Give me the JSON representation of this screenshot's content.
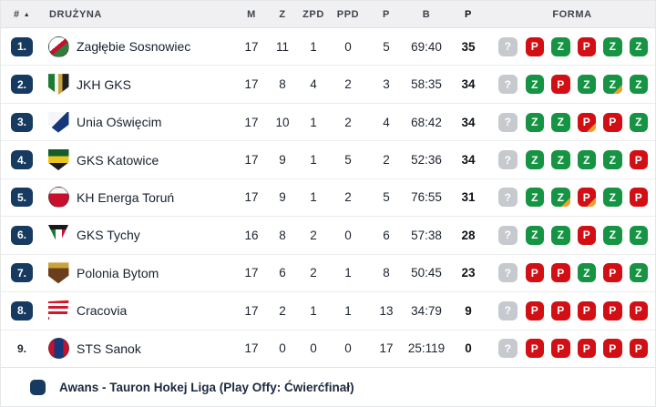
{
  "colors": {
    "navy": "#173a60",
    "green": "#169444",
    "red": "#d20f14",
    "gray": "#c6c9cd",
    "orange": "#f0a032"
  },
  "table": {
    "columns": {
      "rank": "#",
      "rank_sort": "▲",
      "team": "DRUŻYNA",
      "m": "M",
      "z": "Z",
      "zpd": "ZPD",
      "ppd": "PPD",
      "p": "P",
      "b": "B",
      "pts": "P",
      "forma": "FORMA"
    },
    "rows": [
      {
        "rank": "1.",
        "promoted": true,
        "team": "Zagłębie Sosnowiec",
        "m": "17",
        "z": "11",
        "zpd": "1",
        "ppd": "0",
        "p": "5",
        "b": "69:40",
        "pts": "35",
        "forma": [
          {
            "t": "?",
            "s": "unknown"
          },
          {
            "t": "P",
            "s": "loss"
          },
          {
            "t": "Z",
            "s": "win"
          },
          {
            "t": "P",
            "s": "loss"
          },
          {
            "t": "Z",
            "s": "win"
          },
          {
            "t": "Z",
            "s": "win"
          }
        ],
        "logo": {
          "shape": "circle",
          "bg": "linear-gradient(140deg, #ffffff 42%, #c8102e 42% 58%, #2e7d3a 58%)"
        }
      },
      {
        "rank": "2.",
        "promoted": true,
        "team": "JKH GKS",
        "m": "17",
        "z": "8",
        "zpd": "4",
        "ppd": "2",
        "p": "3",
        "b": "58:35",
        "pts": "34",
        "forma": [
          {
            "t": "?",
            "s": "unknown"
          },
          {
            "t": "Z",
            "s": "win"
          },
          {
            "t": "P",
            "s": "loss"
          },
          {
            "t": "Z",
            "s": "win"
          },
          {
            "t": "Z",
            "s": "win",
            "ot": true
          },
          {
            "t": "Z",
            "s": "win"
          }
        ],
        "logo": {
          "shape": "shield",
          "bg": "linear-gradient(90deg, #1d7a34 0 30%, #f2f2f2 30% 48%, #caa43a 48% 68%, #1f1f1f 68%)"
        }
      },
      {
        "rank": "3.",
        "promoted": true,
        "team": "Unia Oświęcim",
        "m": "17",
        "z": "10",
        "zpd": "1",
        "ppd": "2",
        "p": "4",
        "b": "68:42",
        "pts": "34",
        "forma": [
          {
            "t": "?",
            "s": "unknown"
          },
          {
            "t": "Z",
            "s": "win"
          },
          {
            "t": "Z",
            "s": "win"
          },
          {
            "t": "P",
            "s": "loss",
            "ot": true
          },
          {
            "t": "P",
            "s": "loss"
          },
          {
            "t": "Z",
            "s": "win"
          }
        ],
        "logo": {
          "shape": "shield",
          "bg": "linear-gradient(135deg, #f4f6fa 45%, #15377c 45%)"
        }
      },
      {
        "rank": "4.",
        "promoted": true,
        "team": "GKS Katowice",
        "m": "17",
        "z": "9",
        "zpd": "1",
        "ppd": "5",
        "p": "2",
        "b": "52:36",
        "pts": "34",
        "forma": [
          {
            "t": "?",
            "s": "unknown"
          },
          {
            "t": "Z",
            "s": "win"
          },
          {
            "t": "Z",
            "s": "win"
          },
          {
            "t": "Z",
            "s": "win"
          },
          {
            "t": "Z",
            "s": "win"
          },
          {
            "t": "P",
            "s": "loss"
          }
        ],
        "logo": {
          "shape": "shield",
          "bg": "linear-gradient(180deg, #145c2a 0 32%, #e8c520 32% 66%, #1a1a1a 66%)"
        }
      },
      {
        "rank": "5.",
        "promoted": true,
        "team": "KH Energa Toruń",
        "m": "17",
        "z": "9",
        "zpd": "1",
        "ppd": "2",
        "p": "5",
        "b": "76:55",
        "pts": "31",
        "forma": [
          {
            "t": "?",
            "s": "unknown"
          },
          {
            "t": "Z",
            "s": "win"
          },
          {
            "t": "Z",
            "s": "win",
            "ot": true
          },
          {
            "t": "P",
            "s": "loss",
            "ot": true
          },
          {
            "t": "Z",
            "s": "win"
          },
          {
            "t": "P",
            "s": "loss"
          }
        ],
        "logo": {
          "shape": "circle",
          "bg": "linear-gradient(180deg, #f5f5f5 0 32%, #c8102e 32%)"
        }
      },
      {
        "rank": "6.",
        "promoted": true,
        "team": "GKS Tychy",
        "m": "16",
        "z": "8",
        "zpd": "2",
        "ppd": "0",
        "p": "6",
        "b": "57:38",
        "pts": "28",
        "forma": [
          {
            "t": "?",
            "s": "unknown"
          },
          {
            "t": "Z",
            "s": "win"
          },
          {
            "t": "Z",
            "s": "win"
          },
          {
            "t": "P",
            "s": "loss"
          },
          {
            "t": "Z",
            "s": "win"
          },
          {
            "t": "Z",
            "s": "win"
          }
        ],
        "logo": {
          "shape": "pennant",
          "bg": "linear-gradient(180deg, #1a1a1a 0 22%, transparent 22%), linear-gradient(90deg, #1d7a34 0 34%, #ffffff 34% 66%, #c8102e 66%)"
        }
      },
      {
        "rank": "7.",
        "promoted": true,
        "team": "Polonia Bytom",
        "m": "17",
        "z": "6",
        "zpd": "2",
        "ppd": "1",
        "p": "8",
        "b": "50:45",
        "pts": "23",
        "forma": [
          {
            "t": "?",
            "s": "unknown"
          },
          {
            "t": "P",
            "s": "loss"
          },
          {
            "t": "P",
            "s": "loss"
          },
          {
            "t": "Z",
            "s": "win"
          },
          {
            "t": "P",
            "s": "loss"
          },
          {
            "t": "Z",
            "s": "win"
          }
        ],
        "logo": {
          "shape": "shield",
          "bg": "linear-gradient(180deg, #caa43a 0 28%, #6b3f1d 28%)"
        }
      },
      {
        "rank": "8.",
        "promoted": true,
        "team": "Cracovia",
        "m": "17",
        "z": "2",
        "zpd": "1",
        "ppd": "1",
        "p": "13",
        "b": "34:79",
        "pts": "9",
        "forma": [
          {
            "t": "?",
            "s": "unknown"
          },
          {
            "t": "P",
            "s": "loss"
          },
          {
            "t": "P",
            "s": "loss"
          },
          {
            "t": "P",
            "s": "loss"
          },
          {
            "t": "P",
            "s": "loss"
          },
          {
            "t": "P",
            "s": "loss"
          }
        ],
        "logo": {
          "shape": "flag",
          "bg": "repeating-linear-gradient(180deg, #d3172a 0 3px, #ffffff 3px 6px)"
        }
      },
      {
        "rank": "9.",
        "promoted": false,
        "team": "STS Sanok",
        "m": "17",
        "z": "0",
        "zpd": "0",
        "ppd": "0",
        "p": "17",
        "b": "25:119",
        "pts": "0",
        "forma": [
          {
            "t": "?",
            "s": "unknown"
          },
          {
            "t": "P",
            "s": "loss"
          },
          {
            "t": "P",
            "s": "loss"
          },
          {
            "t": "P",
            "s": "loss"
          },
          {
            "t": "P",
            "s": "loss"
          },
          {
            "t": "P",
            "s": "loss"
          }
        ],
        "logo": {
          "shape": "circle",
          "bg": "linear-gradient(90deg, #c8102e 0 26%, #15377c 26% 74%, #c8102e 74%)"
        }
      }
    ]
  },
  "legend": {
    "text": "Awans - Tauron Hokej Liga (Play Offy: Ćwierćfinał)"
  }
}
